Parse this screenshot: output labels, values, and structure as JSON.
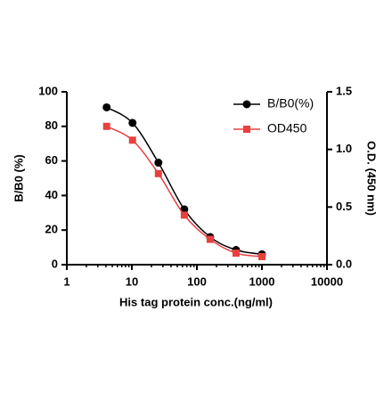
{
  "chart_data": {
    "type": "line",
    "x_label": "His tag protein conc.(ng/ml)",
    "y_label": "B/B0 (%)",
    "y2_label": "O.D. (450 nm)",
    "x": [
      4.096,
      10.24,
      25.6,
      64,
      160,
      400,
      1000
    ],
    "x_log": true,
    "xlim": [
      1,
      10000
    ],
    "xticks": [
      1,
      10,
      100,
      1000,
      10000
    ],
    "ylim": [
      0,
      100
    ],
    "yticks": [
      0,
      20,
      40,
      60,
      80,
      100
    ],
    "y2lim": [
      0,
      1.5
    ],
    "y2ticks": [
      {
        "value": 0,
        "label": "0.0"
      },
      0.5,
      {
        "value": 1,
        "label": "1.0"
      },
      1.5
    ],
    "legend": "upper right",
    "series": [
      {
        "name": "B/B0(%)",
        "color": "#000000",
        "marker": "circle",
        "values": [
          91,
          82,
          59,
          32,
          16,
          8.5,
          6
        ]
      },
      {
        "name": "OD450",
        "color": "#e8403f",
        "marker": "square",
        "axis": "y2",
        "values": [
          1.2,
          1.08,
          0.79,
          0.43,
          0.22,
          0.1,
          0.07
        ]
      }
    ]
  }
}
